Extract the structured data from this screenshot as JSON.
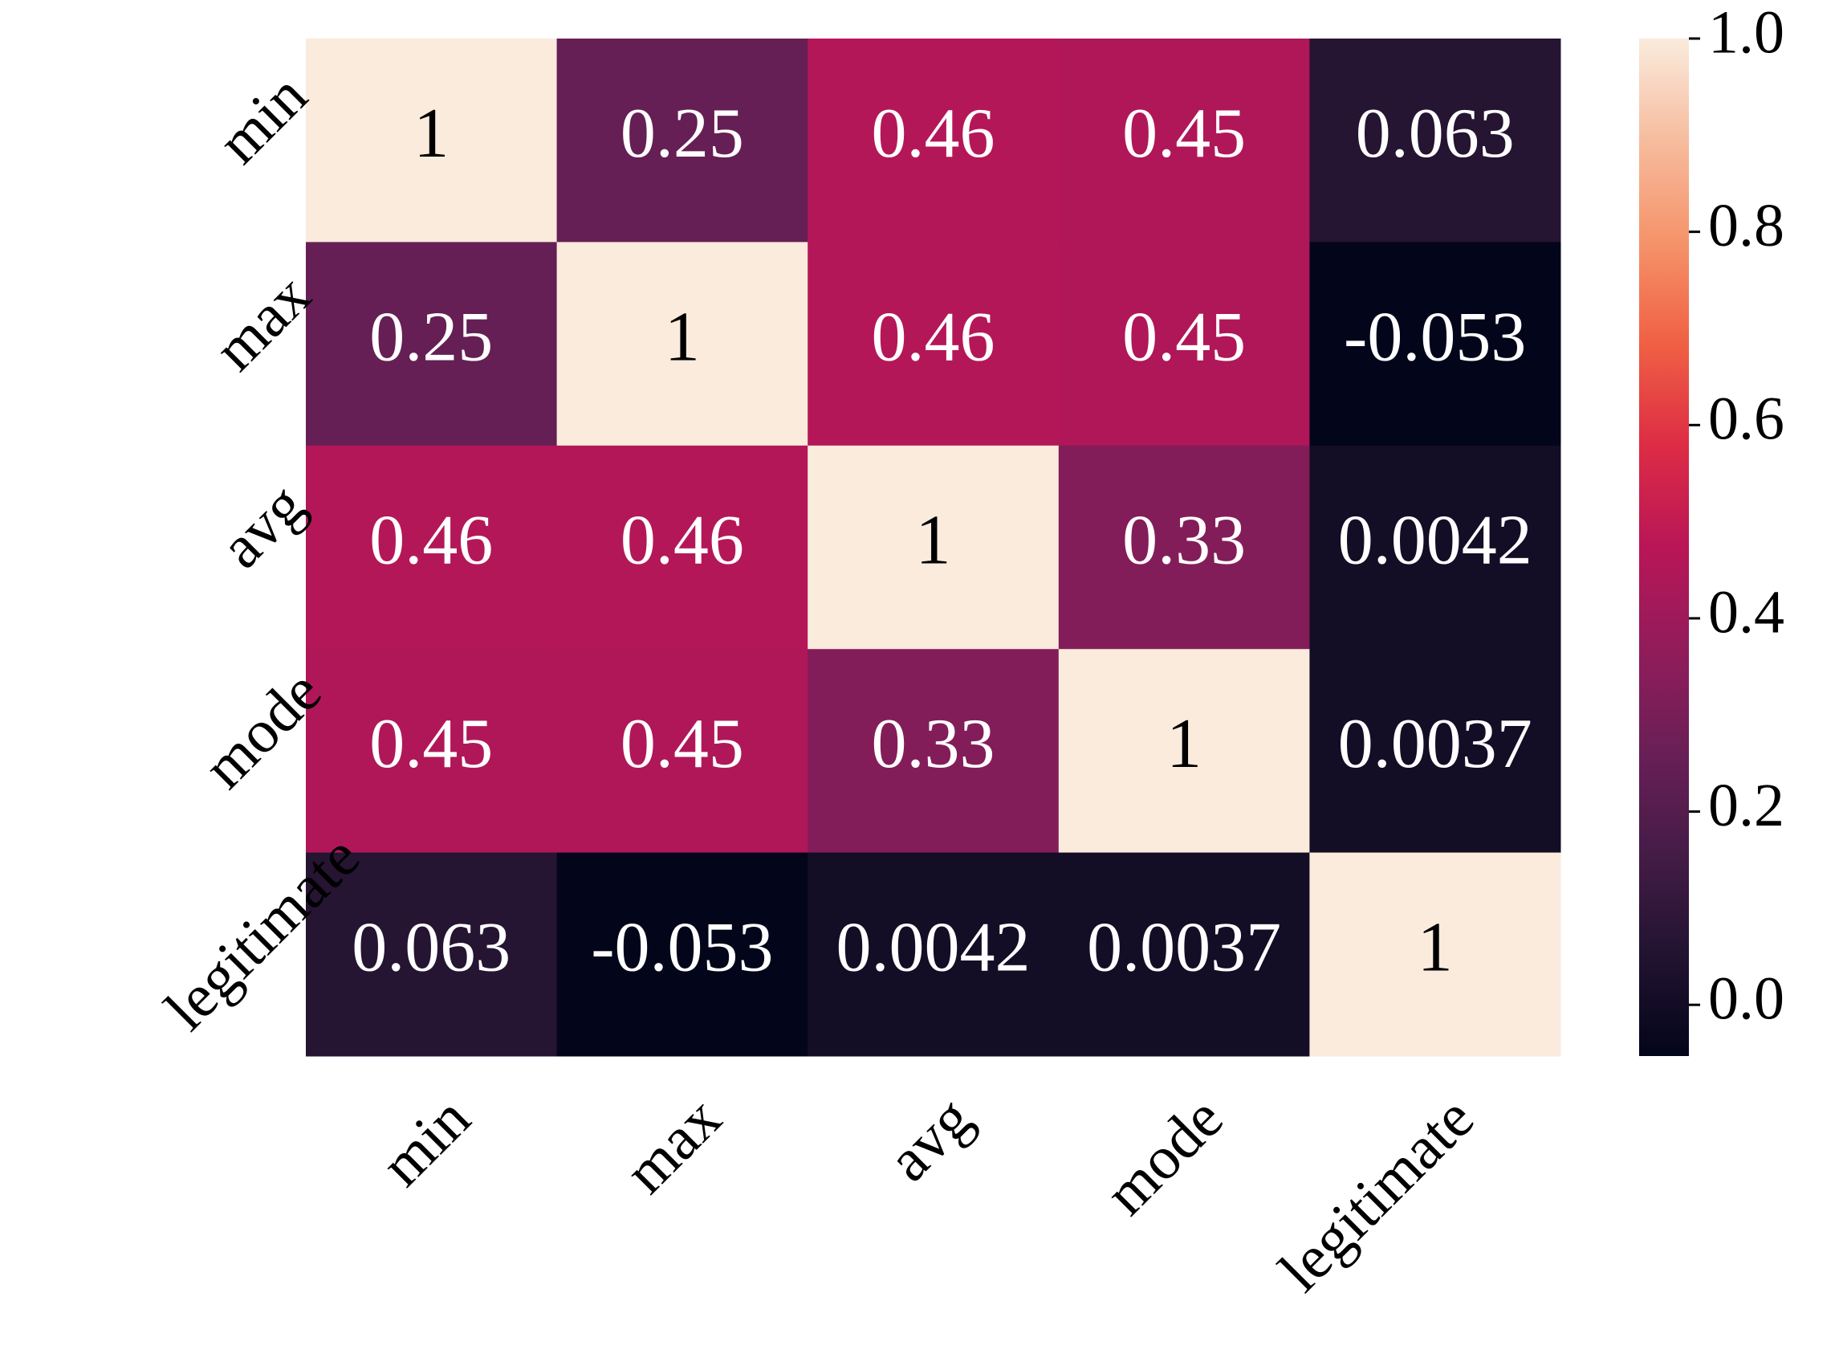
{
  "chart_data": {
    "type": "heatmap",
    "x": [
      "min",
      "max",
      "avg",
      "mode",
      "legitimate"
    ],
    "y": [
      "min",
      "max",
      "avg",
      "mode",
      "legitimate"
    ],
    "values": [
      [
        1,
        0.25,
        0.46,
        0.45,
        0.063
      ],
      [
        0.25,
        1,
        0.46,
        0.45,
        -0.053
      ],
      [
        0.46,
        0.46,
        1,
        0.33,
        0.0042
      ],
      [
        0.45,
        0.45,
        0.33,
        1,
        0.0037
      ],
      [
        0.063,
        -0.053,
        0.0042,
        0.0037,
        1
      ]
    ],
    "colormap": "rocket",
    "clim": [
      -0.053,
      1
    ],
    "cticks": [
      {
        "value": 0,
        "label": "0.0"
      },
      0.2,
      0.4,
      0.6,
      0.8,
      {
        "value": 1,
        "label": "1.0"
      }
    ]
  }
}
